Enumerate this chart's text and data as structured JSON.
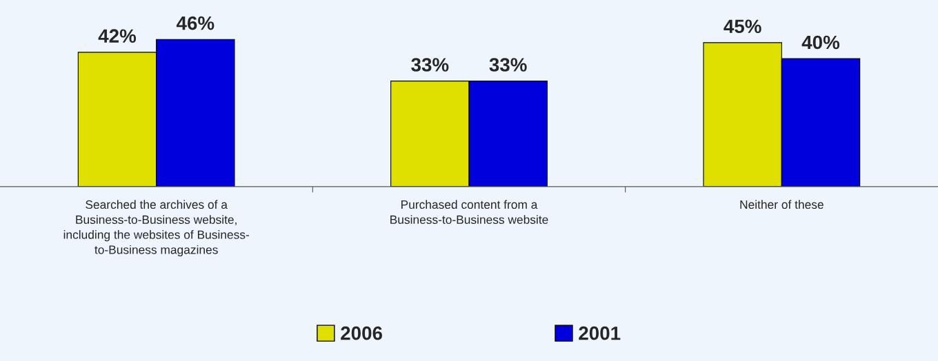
{
  "chart_data": {
    "type": "bar",
    "categories": [
      "Searched the archives of a\nBusiness-to-Business website,\nincluding the websites of Business-\nto-Business magazines",
      "Purchased content from a\nBusiness-to-Business website",
      "Neither of these"
    ],
    "series": [
      {
        "name": "2006",
        "color": "#e0e000",
        "values": [
          42,
          33,
          45
        ],
        "value_labels": [
          "42%",
          "33%",
          "45%"
        ]
      },
      {
        "name": "2001",
        "color": "#0000dd",
        "values": [
          46,
          33,
          40
        ],
        "value_labels": [
          "46%",
          "33%",
          "40%"
        ]
      }
    ],
    "legend": "bottom",
    "grid": false
  }
}
